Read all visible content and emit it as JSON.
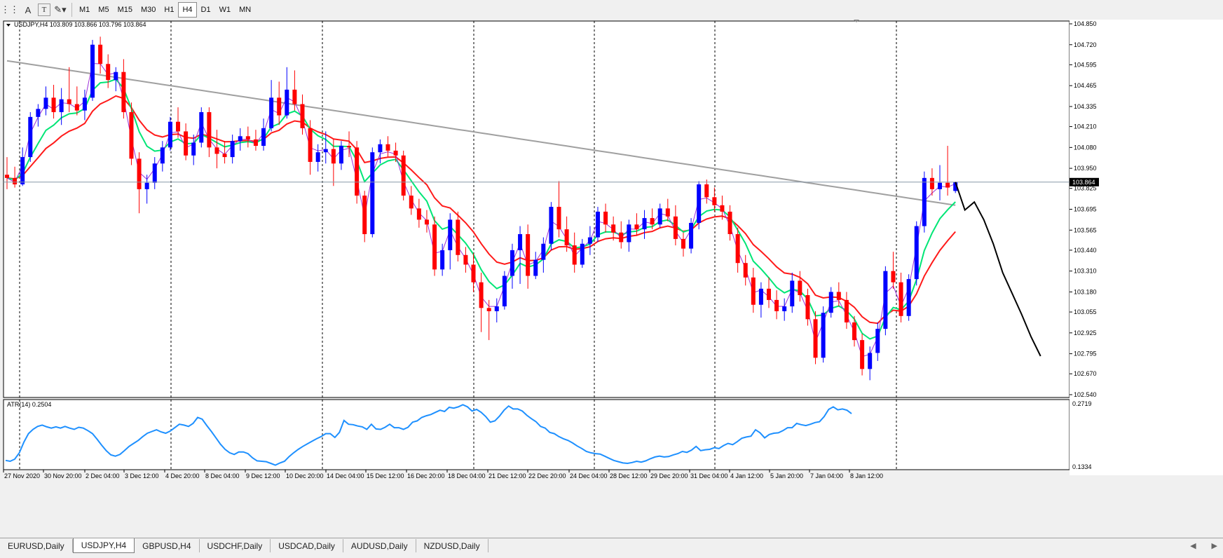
{
  "toolbar": {
    "tools": [
      {
        "name": "grid-tool-icon",
        "glyph": "⋮⋮"
      },
      {
        "name": "text-tool-icon",
        "glyph": "A"
      },
      {
        "name": "text-label-tool-icon",
        "glyph": "T"
      },
      {
        "name": "shapes-tool-icon",
        "glyph": "✎▾"
      }
    ],
    "timeframes": [
      "M1",
      "M5",
      "M15",
      "M30",
      "H1",
      "H4",
      "D1",
      "W1",
      "MN"
    ],
    "active_timeframe": "H4"
  },
  "chart": {
    "symbol_info": "USDJPY,H4  103.809 103.866 103.796 103.864",
    "current_price": "103.864",
    "price_ticks": [
      "104.850",
      "104.720",
      "104.595",
      "104.465",
      "104.335",
      "104.210",
      "104.080",
      "103.950",
      "103.825",
      "103.695",
      "103.565",
      "103.440",
      "103.310",
      "103.180",
      "103.055",
      "102.925",
      "102.795",
      "102.670",
      "102.540"
    ],
    "price_min": 102.54,
    "price_max": 104.85,
    "time_labels": [
      "27 Nov 2020",
      "30 Nov 20:00",
      "2 Dec 04:00",
      "3 Dec 12:00",
      "4 Dec 20:00",
      "8 Dec 04:00",
      "9 Dec 12:00",
      "10 Dec 20:00",
      "14 Dec 04:00",
      "15 Dec 12:00",
      "16 Dec 20:00",
      "18 Dec 04:00",
      "21 Dec 12:00",
      "22 Dec 20:00",
      "24 Dec 04:00",
      "28 Dec 12:00",
      "29 Dec 20:00",
      "31 Dec 04:00",
      "4 Jan 12:00",
      "5 Jan 20:00",
      "7 Jan 04:00",
      "8 Jan 12:00"
    ],
    "colors": {
      "bull": "#0000ff",
      "bear": "#ff0000",
      "ma_fast": "#9b30d9",
      "ma_mid": "#00e676",
      "ma_slow": "#ff1a1a",
      "ma_long": "#a0a0a0",
      "forecast": "#000000",
      "atr": "#1e90ff",
      "price_line": "#8898a8"
    },
    "candles": [
      [
        103.91,
        104.02,
        103.82,
        103.89
      ],
      [
        103.89,
        103.96,
        103.83,
        103.85
      ],
      [
        103.85,
        104.08,
        103.84,
        104.02
      ],
      [
        104.02,
        104.3,
        103.99,
        104.27
      ],
      [
        104.27,
        104.35,
        104.21,
        104.32
      ],
      [
        104.32,
        104.46,
        104.28,
        104.39
      ],
      [
        104.39,
        104.47,
        104.26,
        104.3
      ],
      [
        104.3,
        104.45,
        104.22,
        104.38
      ],
      [
        104.38,
        104.58,
        104.3,
        104.35
      ],
      [
        104.35,
        104.46,
        104.28,
        104.31
      ],
      [
        104.31,
        104.44,
        104.25,
        104.39
      ],
      [
        104.39,
        104.75,
        104.37,
        104.72
      ],
      [
        104.72,
        104.77,
        104.54,
        104.6
      ],
      [
        104.6,
        104.66,
        104.45,
        104.5
      ],
      [
        104.5,
        104.58,
        104.43,
        104.55
      ],
      [
        104.55,
        104.63,
        104.26,
        104.3
      ],
      [
        104.3,
        104.36,
        103.97,
        104.01
      ],
      [
        104.01,
        104.05,
        103.67,
        103.82
      ],
      [
        103.82,
        103.91,
        103.73,
        103.86
      ],
      [
        103.86,
        104.02,
        103.82,
        103.98
      ],
      [
        103.98,
        104.12,
        103.93,
        104.08
      ],
      [
        104.08,
        104.27,
        104.06,
        104.24
      ],
      [
        104.24,
        104.33,
        104.14,
        104.18
      ],
      [
        104.18,
        104.23,
        104.0,
        104.03
      ],
      [
        104.03,
        104.16,
        103.97,
        104.11
      ],
      [
        104.11,
        104.33,
        104.08,
        104.3
      ],
      [
        104.3,
        104.33,
        104.02,
        104.08
      ],
      [
        104.08,
        104.19,
        103.95,
        104.04
      ],
      [
        104.04,
        104.12,
        103.98,
        104.02
      ],
      [
        104.02,
        104.16,
        103.98,
        104.12
      ],
      [
        104.12,
        104.2,
        104.06,
        104.15
      ],
      [
        104.15,
        104.21,
        104.08,
        104.13
      ],
      [
        104.13,
        104.19,
        104.06,
        104.09
      ],
      [
        104.09,
        104.26,
        104.06,
        104.2
      ],
      [
        104.2,
        104.5,
        104.18,
        104.39
      ],
      [
        104.39,
        104.49,
        104.22,
        104.28
      ],
      [
        104.28,
        104.58,
        104.26,
        104.44
      ],
      [
        104.44,
        104.56,
        104.31,
        104.35
      ],
      [
        104.35,
        104.41,
        104.16,
        104.2
      ],
      [
        104.2,
        104.25,
        103.91,
        103.99
      ],
      [
        103.99,
        104.1,
        103.93,
        104.05
      ],
      [
        104.05,
        104.18,
        103.98,
        104.07
      ],
      [
        104.07,
        104.13,
        103.84,
        103.98
      ],
      [
        103.98,
        104.12,
        103.94,
        104.09
      ],
      [
        104.09,
        104.18,
        104.02,
        104.08
      ],
      [
        104.08,
        104.12,
        103.73,
        103.78
      ],
      [
        103.78,
        103.81,
        103.49,
        103.54
      ],
      [
        103.54,
        104.08,
        103.52,
        104.05
      ],
      [
        104.05,
        104.13,
        103.98,
        104.1
      ],
      [
        104.1,
        104.15,
        104.02,
        104.06
      ],
      [
        104.06,
        104.11,
        103.99,
        104.03
      ],
      [
        104.03,
        104.06,
        103.75,
        103.78
      ],
      [
        103.78,
        103.84,
        103.66,
        103.7
      ],
      [
        103.7,
        103.76,
        103.58,
        103.63
      ],
      [
        103.63,
        103.69,
        103.55,
        103.6
      ],
      [
        103.6,
        103.65,
        103.28,
        103.32
      ],
      [
        103.32,
        103.48,
        103.28,
        103.44
      ],
      [
        103.44,
        103.67,
        103.32,
        103.63
      ],
      [
        103.63,
        103.68,
        103.37,
        103.41
      ],
      [
        103.41,
        103.46,
        103.3,
        103.35
      ],
      [
        103.35,
        103.42,
        103.18,
        103.24
      ],
      [
        103.24,
        103.3,
        102.93,
        103.08
      ],
      [
        103.08,
        103.13,
        102.88,
        103.06
      ],
      [
        103.06,
        103.14,
        102.99,
        103.09
      ],
      [
        103.09,
        103.31,
        103.07,
        103.28
      ],
      [
        103.28,
        103.48,
        103.2,
        103.44
      ],
      [
        103.44,
        103.59,
        103.23,
        103.54
      ],
      [
        103.54,
        103.6,
        103.2,
        103.28
      ],
      [
        103.28,
        103.43,
        103.26,
        103.38
      ],
      [
        103.38,
        103.52,
        103.3,
        103.48
      ],
      [
        103.48,
        103.74,
        103.44,
        103.71
      ],
      [
        103.71,
        103.87,
        103.52,
        103.57
      ],
      [
        103.57,
        103.65,
        103.43,
        103.47
      ],
      [
        103.47,
        103.55,
        103.3,
        103.35
      ],
      [
        103.35,
        103.51,
        103.33,
        103.48
      ],
      [
        103.48,
        103.59,
        103.41,
        103.52
      ],
      [
        103.52,
        103.71,
        103.49,
        103.68
      ],
      [
        103.68,
        103.73,
        103.55,
        103.6
      ],
      [
        103.6,
        103.65,
        103.5,
        103.55
      ],
      [
        103.55,
        103.62,
        103.45,
        103.49
      ],
      [
        103.49,
        103.63,
        103.43,
        103.6
      ],
      [
        103.6,
        103.67,
        103.53,
        103.57
      ],
      [
        103.57,
        103.69,
        103.51,
        103.64
      ],
      [
        103.64,
        103.7,
        103.57,
        103.6
      ],
      [
        103.6,
        103.73,
        103.58,
        103.7
      ],
      [
        103.7,
        103.76,
        103.62,
        103.65
      ],
      [
        103.65,
        103.72,
        103.47,
        103.51
      ],
      [
        103.51,
        103.55,
        103.4,
        103.45
      ],
      [
        103.45,
        103.64,
        103.42,
        103.61
      ],
      [
        103.61,
        103.87,
        103.57,
        103.85
      ],
      [
        103.85,
        103.88,
        103.73,
        103.77
      ],
      [
        103.77,
        103.83,
        103.68,
        103.72
      ],
      [
        103.72,
        103.78,
        103.63,
        103.68
      ],
      [
        103.68,
        103.72,
        103.5,
        103.54
      ],
      [
        103.54,
        103.58,
        103.3,
        103.36
      ],
      [
        103.36,
        103.41,
        103.22,
        103.27
      ],
      [
        103.27,
        103.33,
        103.05,
        103.1
      ],
      [
        103.1,
        103.24,
        103.02,
        103.2
      ],
      [
        103.2,
        103.27,
        103.08,
        103.13
      ],
      [
        103.13,
        103.19,
        103.01,
        103.06
      ],
      [
        103.06,
        103.14,
        103.0,
        103.09
      ],
      [
        103.09,
        103.3,
        103.05,
        103.25
      ],
      [
        103.25,
        103.31,
        103.12,
        103.16
      ],
      [
        103.16,
        103.2,
        102.97,
        103.01
      ],
      [
        103.01,
        103.06,
        102.73,
        102.77
      ],
      [
        102.77,
        103.09,
        102.74,
        103.05
      ],
      [
        103.05,
        103.21,
        103.02,
        103.18
      ],
      [
        103.18,
        103.24,
        103.09,
        103.13
      ],
      [
        103.13,
        103.18,
        102.95,
        102.99
      ],
      [
        102.99,
        103.03,
        102.84,
        102.88
      ],
      [
        102.88,
        102.92,
        102.66,
        102.7
      ],
      [
        102.7,
        102.84,
        102.63,
        102.8
      ],
      [
        102.8,
        102.99,
        102.75,
        102.95
      ],
      [
        102.95,
        103.34,
        102.91,
        103.31
      ],
      [
        103.31,
        103.43,
        103.2,
        103.24
      ],
      [
        103.24,
        103.3,
        102.99,
        103.03
      ],
      [
        103.03,
        103.29,
        103.0,
        103.26
      ],
      [
        103.26,
        103.62,
        103.22,
        103.59
      ],
      [
        103.59,
        103.93,
        103.55,
        103.89
      ],
      [
        103.89,
        103.95,
        103.78,
        103.82
      ],
      [
        103.82,
        103.97,
        103.75,
        103.86
      ],
      [
        103.86,
        104.09,
        103.78,
        103.83
      ],
      [
        103.809,
        103.866,
        103.796,
        103.864
      ]
    ],
    "forecast": [
      103.864,
      103.69,
      103.74,
      103.63,
      103.48,
      103.3,
      103.17,
      103.04,
      102.9,
      102.78
    ]
  },
  "atr": {
    "label": "ATR(14) 0.2504",
    "top_value": "0.2719",
    "bottom_value": "0.1334",
    "min": 0.1334,
    "max": 0.2719,
    "values": [
      0.142,
      0.14,
      0.145,
      0.16,
      0.185,
      0.205,
      0.215,
      0.222,
      0.225,
      0.221,
      0.218,
      0.221,
      0.218,
      0.222,
      0.218,
      0.215,
      0.22,
      0.218,
      0.212,
      0.205,
      0.192,
      0.178,
      0.165,
      0.155,
      0.152,
      0.156,
      0.165,
      0.175,
      0.182,
      0.189,
      0.198,
      0.206,
      0.21,
      0.214,
      0.209,
      0.206,
      0.211,
      0.219,
      0.227,
      0.225,
      0.222,
      0.229,
      0.243,
      0.239,
      0.224,
      0.21,
      0.195,
      0.18,
      0.168,
      0.16,
      0.156,
      0.162,
      0.162,
      0.158,
      0.148,
      0.141,
      0.14,
      0.139,
      0.135,
      0.131,
      0.136,
      0.14,
      0.151,
      0.16,
      0.168,
      0.175,
      0.181,
      0.187,
      0.193,
      0.198,
      0.205,
      0.205,
      0.196,
      0.208,
      0.236,
      0.227,
      0.226,
      0.223,
      0.221,
      0.215,
      0.227,
      0.216,
      0.215,
      0.22,
      0.227,
      0.219,
      0.219,
      0.215,
      0.22,
      0.232,
      0.235,
      0.243,
      0.247,
      0.25,
      0.255,
      0.26,
      0.257,
      0.267,
      0.265,
      0.268,
      0.273,
      0.268,
      0.258,
      0.262,
      0.255,
      0.245,
      0.232,
      0.235,
      0.246,
      0.26,
      0.27,
      0.263,
      0.263,
      0.258,
      0.248,
      0.24,
      0.233,
      0.222,
      0.218,
      0.208,
      0.205,
      0.198,
      0.193,
      0.189,
      0.183,
      0.176,
      0.17,
      0.163,
      0.16,
      0.158,
      0.157,
      0.152,
      0.147,
      0.142,
      0.139,
      0.136,
      0.135,
      0.137,
      0.14,
      0.138,
      0.141,
      0.146,
      0.15,
      0.152,
      0.15,
      0.151,
      0.155,
      0.158,
      0.163,
      0.161,
      0.166,
      0.175,
      0.165,
      0.167,
      0.168,
      0.172,
      0.17,
      0.177,
      0.182,
      0.179,
      0.186,
      0.194,
      0.197,
      0.199,
      0.214,
      0.207,
      0.195,
      0.203,
      0.206,
      0.207,
      0.212,
      0.219,
      0.219,
      0.229,
      0.226,
      0.224,
      0.227,
      0.231,
      0.233,
      0.245,
      0.262,
      0.268,
      0.261,
      0.263,
      0.26,
      0.252
    ]
  },
  "tabs": [
    "EURUSD,Daily",
    "USDJPY,H4",
    "GBPUSD,H4",
    "USDCHF,Daily",
    "USDCAD,Daily",
    "AUDUSD,Daily",
    "NZDUSD,Daily"
  ],
  "active_tab": "USDJPY,H4"
}
